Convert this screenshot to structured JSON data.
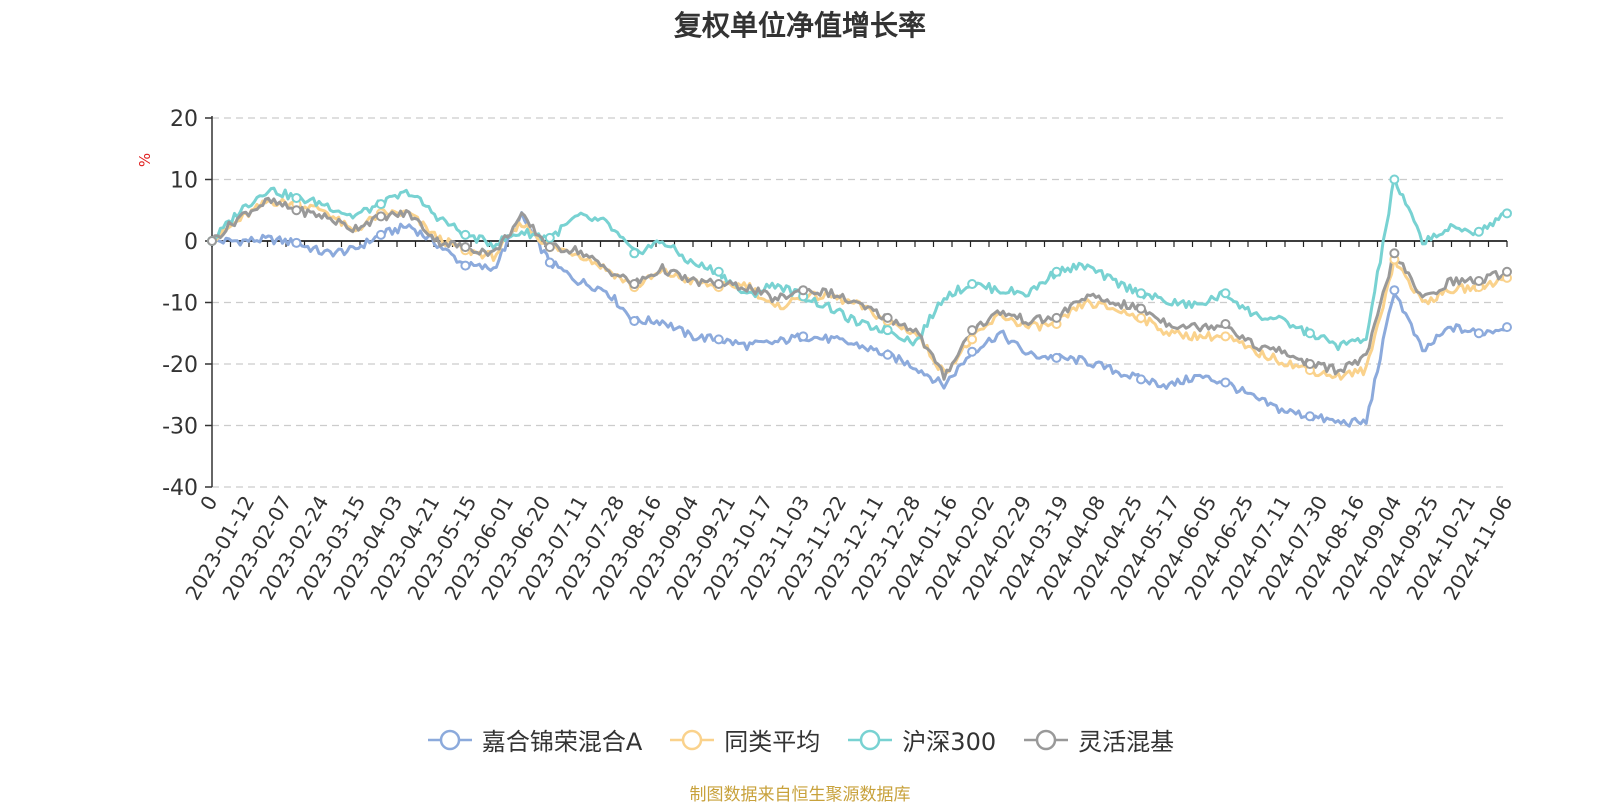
{
  "chart_data": {
    "type": "line",
    "title": "复权单位净值增长率",
    "ylabel": "%",
    "ylim": [
      -40,
      20
    ],
    "yticks": [
      20,
      10,
      0,
      -10,
      -20,
      -30,
      -40
    ],
    "grid": true,
    "legend_position": "bottom",
    "source_note": "制图数据来自恒生聚源数据库",
    "xtick_labels": [
      "0",
      "2023-01-12",
      "2023-02-07",
      "2023-02-24",
      "2023-03-15",
      "2023-04-03",
      "2023-04-21",
      "2023-05-15",
      "2023-06-01",
      "2023-06-20",
      "2023-07-11",
      "2023-07-28",
      "2023-08-16",
      "2023-09-04",
      "2023-09-21",
      "2023-10-17",
      "2023-11-03",
      "2023-11-22",
      "2023-12-11",
      "2023-12-28",
      "2024-01-16",
      "2024-02-02",
      "2024-02-29",
      "2024-03-19",
      "2024-04-08",
      "2024-04-25",
      "2024-05-17",
      "2024-06-05",
      "2024-06-25",
      "2024-07-11",
      "2024-07-30",
      "2024-08-16",
      "2024-09-04",
      "2024-09-25",
      "2024-10-21",
      "2024-11-06"
    ],
    "series": [
      {
        "name": "嘉合锦荣混合A",
        "color": "#8caadc",
        "values": [
          0,
          0,
          0.3,
          -0.3,
          -2,
          -1.5,
          1,
          2.5,
          -0.5,
          -4,
          -4.5,
          4,
          -3.5,
          -6.5,
          -8,
          -13,
          -13,
          -15.5,
          -16,
          -17,
          -16.5,
          -15.5,
          -16,
          -17,
          -18.5,
          -20.5,
          -23.5,
          -18,
          -15,
          -18.5,
          -19,
          -19.5,
          -21,
          -22.5,
          -23.5,
          -22,
          -23,
          -25.5,
          -27.5,
          -28.5,
          -29.5,
          -29.5,
          -8,
          -18,
          -14,
          -15,
          -14
        ]
      },
      {
        "name": "同类平均",
        "color": "#fad28c",
        "values": [
          0,
          3.5,
          6.5,
          6,
          5,
          1.5,
          4.5,
          4.5,
          0.5,
          -1.5,
          -2.5,
          3,
          -1,
          -2,
          -4.5,
          -7.5,
          -5,
          -6.5,
          -7.5,
          -7,
          -11,
          -9,
          -9,
          -10.5,
          -13,
          -15,
          -21.5,
          -16,
          -12,
          -14,
          -13.5,
          -10,
          -11,
          -12.5,
          -15,
          -15.5,
          -15.5,
          -18,
          -19.5,
          -21,
          -22,
          -21,
          -3,
          -10,
          -8,
          -7.5,
          -6
        ]
      },
      {
        "name": "沪深300",
        "color": "#78d2d2",
        "values": [
          0,
          5,
          8.5,
          7,
          6,
          4,
          6,
          8,
          4,
          1,
          -0.5,
          1.5,
          0.5,
          4,
          3,
          -2,
          0,
          -3.5,
          -5,
          -9,
          -7,
          -9,
          -11,
          -13.5,
          -14.5,
          -16.5,
          -9,
          -7,
          -8,
          -8.5,
          -5,
          -4,
          -6.5,
          -8.5,
          -10,
          -10.5,
          -8.5,
          -12,
          -13,
          -15,
          -17,
          -16,
          10,
          0,
          2,
          1.5,
          4.5
        ]
      },
      {
        "name": "灵活混基",
        "color": "#999999",
        "values": [
          0,
          4,
          6.5,
          5,
          4,
          2,
          4,
          4.5,
          0,
          -1,
          -2,
          4,
          -1,
          -1.5,
          -4.5,
          -7,
          -4.5,
          -6.5,
          -7,
          -7.5,
          -9.5,
          -8,
          -8.5,
          -10.5,
          -12.5,
          -14.5,
          -22,
          -14.5,
          -11.5,
          -13,
          -12.5,
          -9,
          -10,
          -11,
          -13.5,
          -14,
          -13.5,
          -17,
          -18,
          -20,
          -21,
          -19,
          -2,
          -9.5,
          -6.5,
          -6.5,
          -5
        ]
      }
    ]
  }
}
